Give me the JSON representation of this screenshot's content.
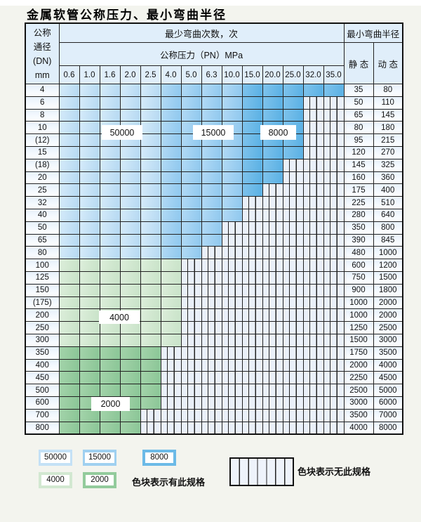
{
  "page": {
    "title": "金属软管公称压力、最小弯曲半径"
  },
  "table": {
    "dn_header_lines": [
      "公称",
      "通径",
      "(DN)",
      "mm"
    ],
    "bend_cycles_header": "最少弯曲次数，次",
    "pressure_header": "公称压力（PN）MPa",
    "radius_header": "最小弯曲半径",
    "static_label": "静 态",
    "dynamic_label": "动 态",
    "pressures": [
      "0.6",
      "1.0",
      "1.6",
      "2.0",
      "2.5",
      "4.0",
      "5.0",
      "6.3",
      "10.0",
      "15.0",
      "20.0",
      "25.0",
      "32.0",
      "35.0"
    ],
    "zone_legend": {
      "blue_c50_value": "50000",
      "blue_c50_cols": "0.6-2.5",
      "blue_c15_value": "15000",
      "blue_c15_cols": "4.0-10.0",
      "blue_c80_value": "8000",
      "blue_c80_cols": "15.0-35.0",
      "green_c40_value": "4000",
      "green_c40_rows": "100-300",
      "green_c20_value": "2000",
      "green_c20_rows": "350-800"
    },
    "rows": [
      {
        "dn": "4",
        "group": "blue",
        "colored_cols": 14,
        "static": "35",
        "dynamic": "80"
      },
      {
        "dn": "6",
        "group": "blue",
        "colored_cols": 12,
        "static": "50",
        "dynamic": "110"
      },
      {
        "dn": "8",
        "group": "blue",
        "colored_cols": 12,
        "static": "65",
        "dynamic": "145"
      },
      {
        "dn": "10",
        "group": "blue",
        "colored_cols": 12,
        "static": "80",
        "dynamic": "180"
      },
      {
        "dn": "(12)",
        "group": "blue",
        "colored_cols": 12,
        "static": "95",
        "dynamic": "215"
      },
      {
        "dn": "15",
        "group": "blue",
        "colored_cols": 12,
        "static": "120",
        "dynamic": "270"
      },
      {
        "dn": "(18)",
        "group": "blue",
        "colored_cols": 11,
        "static": "145",
        "dynamic": "325"
      },
      {
        "dn": "20",
        "group": "blue",
        "colored_cols": 11,
        "static": "160",
        "dynamic": "360"
      },
      {
        "dn": "25",
        "group": "blue",
        "colored_cols": 10,
        "static": "175",
        "dynamic": "400"
      },
      {
        "dn": "32",
        "group": "blue",
        "colored_cols": 9,
        "static": "225",
        "dynamic": "510"
      },
      {
        "dn": "40",
        "group": "blue",
        "colored_cols": 9,
        "static": "280",
        "dynamic": "640"
      },
      {
        "dn": "50",
        "group": "blue",
        "colored_cols": 8,
        "static": "350",
        "dynamic": "800"
      },
      {
        "dn": "65",
        "group": "blue",
        "colored_cols": 8,
        "static": "390",
        "dynamic": "845"
      },
      {
        "dn": "80",
        "group": "blue",
        "colored_cols": 7,
        "static": "480",
        "dynamic": "1000"
      },
      {
        "dn": "100",
        "group": "green4000",
        "colored_cols": 6,
        "static": "600",
        "dynamic": "1200"
      },
      {
        "dn": "125",
        "group": "green4000",
        "colored_cols": 6,
        "static": "750",
        "dynamic": "1500"
      },
      {
        "dn": "150",
        "group": "green4000",
        "colored_cols": 6,
        "static": "900",
        "dynamic": "1800"
      },
      {
        "dn": "(175)",
        "group": "green4000",
        "colored_cols": 6,
        "static": "1000",
        "dynamic": "2000"
      },
      {
        "dn": "200",
        "group": "green4000",
        "colored_cols": 6,
        "static": "1000",
        "dynamic": "2000"
      },
      {
        "dn": "250",
        "group": "green4000",
        "colored_cols": 6,
        "static": "1250",
        "dynamic": "2500"
      },
      {
        "dn": "300",
        "group": "green4000",
        "colored_cols": 6,
        "static": "1500",
        "dynamic": "3000"
      },
      {
        "dn": "350",
        "group": "green2000",
        "colored_cols": 5,
        "static": "1750",
        "dynamic": "3500"
      },
      {
        "dn": "400",
        "group": "green2000",
        "colored_cols": 5,
        "static": "2000",
        "dynamic": "4000"
      },
      {
        "dn": "450",
        "group": "green2000",
        "colored_cols": 5,
        "static": "2250",
        "dynamic": "4500"
      },
      {
        "dn": "500",
        "group": "green2000",
        "colored_cols": 5,
        "static": "2500",
        "dynamic": "5000"
      },
      {
        "dn": "600",
        "group": "green2000",
        "colored_cols": 5,
        "static": "3000",
        "dynamic": "6000"
      },
      {
        "dn": "700",
        "group": "green2000",
        "colored_cols": 4,
        "static": "3500",
        "dynamic": "7000"
      },
      {
        "dn": "800",
        "group": "green2000",
        "colored_cols": 4,
        "static": "4000",
        "dynamic": "8000"
      }
    ],
    "region_labels": [
      {
        "text": "50000"
      },
      {
        "text": "15000"
      },
      {
        "text": "8000"
      },
      {
        "text": "4000"
      },
      {
        "text": "2000"
      }
    ]
  },
  "legend": {
    "swatches": [
      {
        "value": "50000",
        "color": "#c4e1f6"
      },
      {
        "value": "15000",
        "color": "#9fd0f0"
      },
      {
        "value": "8000",
        "color": "#6cbae7"
      },
      {
        "value": "4000",
        "color": "#d2e8d1"
      },
      {
        "value": "2000",
        "color": "#93cb9c"
      }
    ],
    "available_note": "色块表示有此规格",
    "unavailable_note": "色块表示无此规格"
  }
}
